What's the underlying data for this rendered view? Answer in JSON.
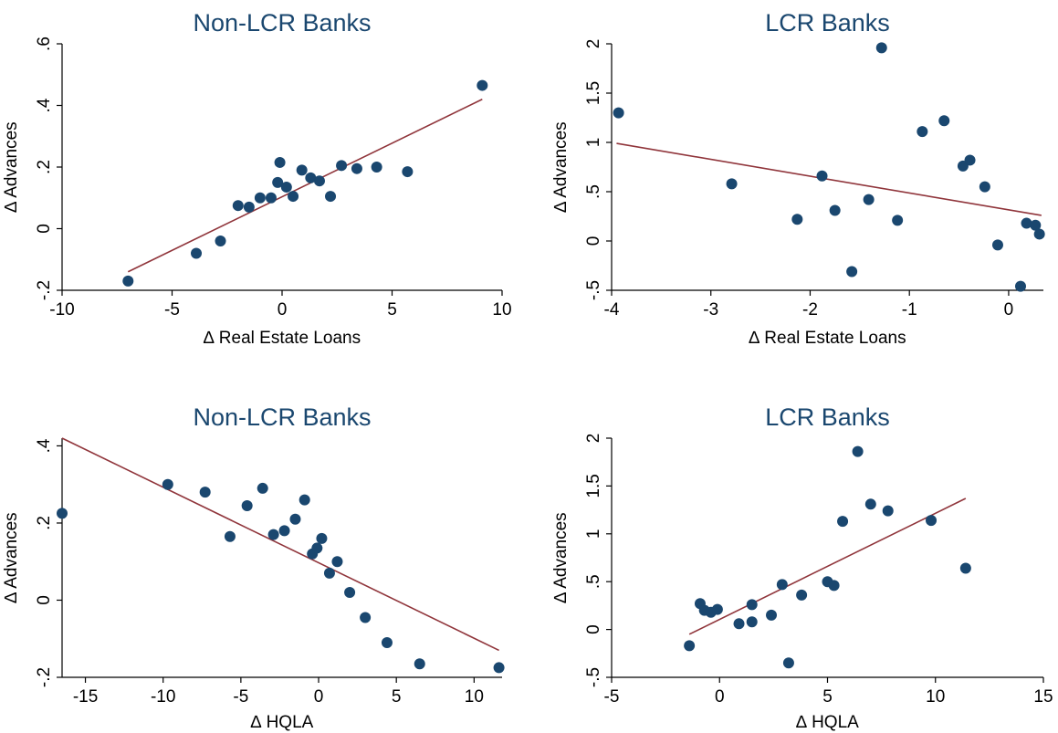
{
  "colors": {
    "point": "#1a476f",
    "fit_line": "#90353b",
    "title": "#1a476f",
    "axis": "#000000"
  },
  "chart_data": [
    {
      "type": "scatter",
      "title": "Non-LCR Banks",
      "xlabel": "∆ Real Estate Loans",
      "ylabel": "∆ Advances",
      "xlim": [
        -10,
        10
      ],
      "ylim": [
        -0.2,
        0.6
      ],
      "xticks": [
        -10,
        -5,
        0,
        5,
        10
      ],
      "xtick_labels": [
        "-10",
        "-5",
        "0",
        "5",
        "10"
      ],
      "yticks": [
        -0.2,
        0,
        0.2,
        0.4,
        0.6
      ],
      "ytick_labels": [
        "-.2",
        "0",
        ".2",
        ".4",
        ".6"
      ],
      "grid": false,
      "points": [
        {
          "x": -7.0,
          "y": -0.17
        },
        {
          "x": -3.9,
          "y": -0.08
        },
        {
          "x": -2.8,
          "y": -0.04
        },
        {
          "x": -2.0,
          "y": 0.075
        },
        {
          "x": -1.5,
          "y": 0.07
        },
        {
          "x": -1.0,
          "y": 0.1
        },
        {
          "x": -0.5,
          "y": 0.1
        },
        {
          "x": -0.2,
          "y": 0.15
        },
        {
          "x": -0.1,
          "y": 0.215
        },
        {
          "x": 0.2,
          "y": 0.135
        },
        {
          "x": 0.5,
          "y": 0.105
        },
        {
          "x": 0.9,
          "y": 0.19
        },
        {
          "x": 1.3,
          "y": 0.165
        },
        {
          "x": 1.7,
          "y": 0.155
        },
        {
          "x": 2.2,
          "y": 0.105
        },
        {
          "x": 2.7,
          "y": 0.205
        },
        {
          "x": 3.4,
          "y": 0.195
        },
        {
          "x": 4.3,
          "y": 0.2
        },
        {
          "x": 5.7,
          "y": 0.185
        },
        {
          "x": 9.1,
          "y": 0.465
        }
      ],
      "fit_line": {
        "x": [
          -7.0,
          9.1
        ],
        "y": [
          -0.14,
          0.42
        ]
      }
    },
    {
      "type": "scatter",
      "title": "LCR Banks",
      "xlabel": "∆ Real Estate Loans",
      "ylabel": "∆ Advances",
      "xlim": [
        -4,
        0.35
      ],
      "ylim": [
        -0.5,
        2
      ],
      "xticks": [
        -4,
        -3,
        -2,
        -1,
        0
      ],
      "xtick_labels": [
        "-4",
        "-3",
        "-2",
        "-1",
        "0"
      ],
      "yticks": [
        -0.5,
        0,
        0.5,
        1,
        1.5,
        2
      ],
      "ytick_labels": [
        "-.5",
        "0",
        ".5",
        "1",
        "1.5",
        "2"
      ],
      "grid": false,
      "points": [
        {
          "x": -3.93,
          "y": 1.3
        },
        {
          "x": -2.79,
          "y": 0.58
        },
        {
          "x": -2.13,
          "y": 0.22
        },
        {
          "x": -1.88,
          "y": 0.66
        },
        {
          "x": -1.75,
          "y": 0.31
        },
        {
          "x": -1.58,
          "y": -0.31
        },
        {
          "x": -1.41,
          "y": 0.42
        },
        {
          "x": -1.28,
          "y": 1.96
        },
        {
          "x": -1.12,
          "y": 0.21
        },
        {
          "x": -0.87,
          "y": 1.11
        },
        {
          "x": -0.65,
          "y": 1.22
        },
        {
          "x": -0.46,
          "y": 0.76
        },
        {
          "x": -0.39,
          "y": 0.82
        },
        {
          "x": -0.24,
          "y": 0.55
        },
        {
          "x": -0.11,
          "y": -0.04
        },
        {
          "x": 0.12,
          "y": -0.46
        },
        {
          "x": 0.18,
          "y": 0.18
        },
        {
          "x": 0.27,
          "y": 0.16
        },
        {
          "x": 0.31,
          "y": 0.07
        }
      ],
      "fit_line": {
        "x": [
          -3.95,
          0.33
        ],
        "y": [
          0.99,
          0.26
        ]
      }
    },
    {
      "type": "scatter",
      "title": "Non-LCR Banks",
      "xlabel": "∆ HQLA",
      "ylabel": "∆ Advances",
      "xlim": [
        -16.5,
        11.8
      ],
      "ylim": [
        -0.2,
        0.42
      ],
      "xticks": [
        -15,
        -10,
        -5,
        0,
        5,
        10
      ],
      "xtick_labels": [
        "-15",
        "-10",
        "-5",
        "0",
        "5",
        "10"
      ],
      "yticks": [
        -0.2,
        0,
        0.2,
        0.4
      ],
      "ytick_labels": [
        "-.2",
        "0",
        ".2",
        ".4"
      ],
      "grid": false,
      "points": [
        {
          "x": -16.5,
          "y": 0.225
        },
        {
          "x": -9.7,
          "y": 0.3
        },
        {
          "x": -7.3,
          "y": 0.28
        },
        {
          "x": -5.7,
          "y": 0.165
        },
        {
          "x": -4.6,
          "y": 0.245
        },
        {
          "x": -3.6,
          "y": 0.29
        },
        {
          "x": -2.9,
          "y": 0.17
        },
        {
          "x": -2.2,
          "y": 0.18
        },
        {
          "x": -1.5,
          "y": 0.21
        },
        {
          "x": -0.9,
          "y": 0.26
        },
        {
          "x": -0.4,
          "y": 0.12
        },
        {
          "x": -0.1,
          "y": 0.135
        },
        {
          "x": 0.2,
          "y": 0.16
        },
        {
          "x": 0.7,
          "y": 0.07
        },
        {
          "x": 1.2,
          "y": 0.1
        },
        {
          "x": 2.0,
          "y": 0.02
        },
        {
          "x": 3.0,
          "y": -0.045
        },
        {
          "x": 4.4,
          "y": -0.11
        },
        {
          "x": 6.5,
          "y": -0.165
        },
        {
          "x": 11.6,
          "y": -0.175
        }
      ],
      "fit_line": {
        "x": [
          -16.5,
          11.6
        ],
        "y": [
          0.42,
          -0.13
        ]
      }
    },
    {
      "type": "scatter",
      "title": "LCR Banks",
      "xlabel": "∆ HQLA",
      "ylabel": "∆ Advances",
      "xlim": [
        -5,
        15
      ],
      "ylim": [
        -0.5,
        2
      ],
      "xticks": [
        -5,
        0,
        5,
        10,
        15
      ],
      "xtick_labels": [
        "-5",
        "0",
        "5",
        "10",
        "15"
      ],
      "yticks": [
        -0.5,
        0,
        0.5,
        1,
        1.5,
        2
      ],
      "ytick_labels": [
        "-.5",
        "0",
        ".5",
        "1",
        "1.5",
        "2"
      ],
      "grid": false,
      "points": [
        {
          "x": -1.4,
          "y": -0.17
        },
        {
          "x": -0.9,
          "y": 0.27
        },
        {
          "x": -0.7,
          "y": 0.2
        },
        {
          "x": -0.4,
          "y": 0.18
        },
        {
          "x": -0.1,
          "y": 0.21
        },
        {
          "x": 0.9,
          "y": 0.06
        },
        {
          "x": 1.5,
          "y": 0.08
        },
        {
          "x": 1.5,
          "y": 0.26
        },
        {
          "x": 2.4,
          "y": 0.15
        },
        {
          "x": 2.9,
          "y": 0.47
        },
        {
          "x": 3.2,
          "y": -0.35
        },
        {
          "x": 3.8,
          "y": 0.36
        },
        {
          "x": 5.0,
          "y": 0.5
        },
        {
          "x": 5.3,
          "y": 0.46
        },
        {
          "x": 5.7,
          "y": 1.13
        },
        {
          "x": 6.4,
          "y": 1.86
        },
        {
          "x": 7.0,
          "y": 1.31
        },
        {
          "x": 7.8,
          "y": 1.24
        },
        {
          "x": 9.8,
          "y": 1.14
        },
        {
          "x": 11.4,
          "y": 0.64
        }
      ],
      "fit_line": {
        "x": [
          -1.4,
          11.4
        ],
        "y": [
          -0.05,
          1.37
        ]
      }
    }
  ]
}
